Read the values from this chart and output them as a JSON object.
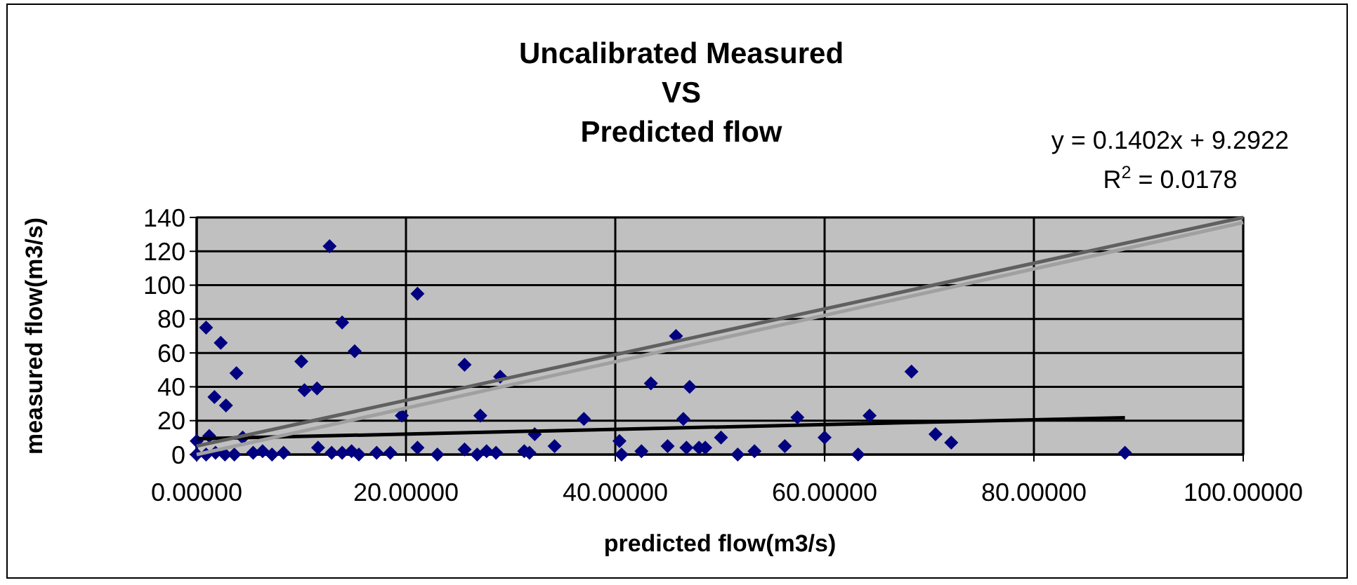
{
  "chart_data": {
    "type": "scatter",
    "title": "Uncalibrated Measured\nVS\nPredicted flow",
    "xlabel": "predicted flow(m3/s)",
    "ylabel": "measured flow(m3/s)",
    "annotations": [
      "y = 0.1402x + 9.2922",
      "R$^{2}$ = 0.0178"
    ],
    "xlim": [
      0,
      100
    ],
    "ylim": [
      0,
      140
    ],
    "xticks": [
      {
        "value": 0,
        "label": "0.00000"
      },
      {
        "value": 20,
        "label": "20.00000"
      },
      {
        "value": 40,
        "label": "40.00000"
      },
      {
        "value": 60,
        "label": "60.00000"
      },
      {
        "value": 80,
        "label": "80.00000"
      },
      {
        "value": 100,
        "label": "100.00000"
      }
    ],
    "yticks": [
      0,
      20,
      40,
      60,
      80,
      100,
      120,
      140
    ],
    "grid": true,
    "series": [
      {
        "color": "#000080",
        "marker": "diamond",
        "x": [
          0.9,
          2.3,
          1.7,
          2.8,
          3.8,
          1.2,
          0,
          4.4,
          0,
          0.9,
          1.8,
          2.7,
          3.6,
          5.4,
          6.3,
          7.2,
          8.3,
          10,
          10.3,
          11.5,
          12.7,
          11.6,
          12.9,
          13.9,
          15.1,
          13.9,
          14.8,
          15.5,
          17.2,
          18.5,
          19.6,
          21.1,
          21.1,
          23,
          25.6,
          25.6,
          27.1,
          26.8,
          27.7,
          28.6,
          29,
          31.3,
          31.8,
          32.3,
          34.2,
          37,
          40.4,
          40.6,
          42.5,
          45.8,
          43.4,
          47.1,
          46.5,
          45,
          46.8,
          48,
          48.6,
          50.1,
          51.7,
          53.3,
          56.2,
          57.4,
          60,
          63.2,
          64.3,
          68.3,
          70.6,
          72.1,
          88.7
        ],
        "values": [
          75,
          66,
          34,
          29,
          48,
          11,
          8,
          10,
          0,
          0,
          1,
          0,
          0,
          1,
          2,
          0,
          1,
          55,
          38,
          39,
          123,
          4,
          1,
          78,
          61,
          1,
          2,
          0,
          1,
          1,
          23,
          95,
          4,
          0,
          53,
          3,
          23,
          0,
          2,
          1,
          46,
          2,
          1,
          12,
          5,
          21,
          8,
          0,
          2,
          70,
          42,
          40,
          21,
          5,
          4,
          4,
          4,
          10,
          0,
          2,
          5,
          22,
          10,
          0,
          23,
          49,
          12,
          7,
          1
        ]
      },
      {
        "type": "line",
        "color": "#000000",
        "marker": "none",
        "line_style": "solid",
        "x": [
          0,
          88.7
        ],
        "values": [
          9.3,
          21.7
        ]
      },
      {
        "type": "line",
        "color": "#606060",
        "marker": "none",
        "line_style": "solid",
        "x": [
          0,
          100
        ],
        "values": [
          5,
          140
        ]
      },
      {
        "type": "line",
        "color": "#a0a0a0",
        "marker": "none",
        "line_style": "solid",
        "x": [
          0,
          100
        ],
        "values": [
          0,
          137
        ]
      }
    ]
  }
}
